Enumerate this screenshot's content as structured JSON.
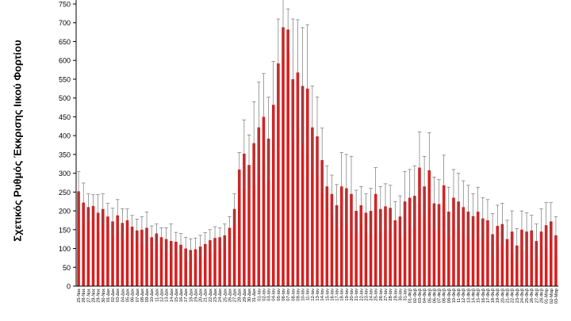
{
  "chart_data": {
    "type": "bar",
    "ylabel": "Σχετικός Ρυθμός Έκκρισης Ιικού Φορτίου",
    "ylim": [
      0,
      750
    ],
    "yticks": [
      0,
      50,
      100,
      150,
      200,
      250,
      300,
      350,
      400,
      450,
      500,
      550,
      600,
      650,
      700,
      750
    ],
    "grid": false,
    "colors": {
      "bar": "#d81e1e",
      "error": "#606060",
      "axis": "#000000"
    },
    "categories": [
      "25-Νοε",
      "26-Νοε",
      "27-Νοε",
      "28-Νοε",
      "29-Νοε",
      "30-Νοε",
      "01-Δεκ",
      "02-Δεκ",
      "03-Δεκ",
      "04-Δεκ",
      "05-Δεκ",
      "06-Δεκ",
      "07-Δεκ",
      "08-Δεκ",
      "09-Δεκ",
      "10-Δεκ",
      "11-Δεκ",
      "12-Δεκ",
      "13-Δεκ",
      "14-Δεκ",
      "15-Δεκ",
      "16-Δεκ",
      "17-Δεκ",
      "18-Δεκ",
      "19-Δεκ",
      "20-Δεκ",
      "21-Δεκ",
      "22-Δεκ",
      "23-Δεκ",
      "24-Δεκ",
      "25-Δεκ",
      "26-Δεκ",
      "27-Δεκ",
      "28-Δεκ",
      "29-Δεκ",
      "30-Δεκ",
      "31-Δεκ",
      "01-Ιαν",
      "02-Ιαν",
      "03-Ιαν",
      "04-Ιαν",
      "05-Ιαν",
      "06-Ιαν",
      "07-Ιαν",
      "08-Ιαν",
      "09-Ιαν",
      "10-Ιαν",
      "11-Ιαν",
      "12-Ιαν",
      "13-Ιαν",
      "14-Ιαν",
      "15-Ιαν",
      "16-Ιαν",
      "17-Ιαν",
      "18-Ιαν",
      "19-Ιαν",
      "20-Ιαν",
      "21-Ιαν",
      "22-Ιαν",
      "23-Ιαν",
      "24-Ιαν",
      "25-Ιαν",
      "26-Ιαν",
      "27-Ιαν",
      "28-Ιαν",
      "29-Ιαν",
      "30-Ιαν",
      "31-Ιαν",
      "01-Φεβ",
      "02-Φεβ",
      "03-Φεβ",
      "04-Φεβ",
      "05-Φεβ",
      "06-Φεβ",
      "07-Φεβ",
      "08-Φεβ",
      "09-Φεβ",
      "10-Φεβ",
      "11-Φεβ",
      "12-Φεβ",
      "13-Φεβ",
      "14-Φεβ",
      "15-Φεβ",
      "16-Φεβ",
      "17-Φεβ",
      "18-Φεβ",
      "19-Φεβ",
      "20-Φεβ",
      "21-Φεβ",
      "22-Φεβ",
      "23-Φεβ",
      "24-Φεβ",
      "25-Φεβ",
      "26-Φεβ",
      "27-Φεβ",
      "28-Φεβ",
      "01-Μαρ",
      "02-Μαρ",
      "03-Μαρ"
    ],
    "values": [
      252,
      222,
      210,
      213,
      195,
      205,
      185,
      172,
      188,
      168,
      175,
      158,
      148,
      150,
      155,
      130,
      140,
      130,
      125,
      120,
      118,
      110,
      100,
      96,
      98,
      105,
      112,
      122,
      128,
      130,
      135,
      155,
      205,
      310,
      352,
      322,
      380,
      422,
      450,
      392,
      482,
      592,
      688,
      682,
      550,
      568,
      532,
      525,
      422,
      398,
      335,
      265,
      245,
      215,
      265,
      260,
      245,
      200,
      215,
      195,
      200,
      245,
      205,
      212,
      208,
      175,
      185,
      225,
      235,
      240,
      315,
      265,
      308,
      220,
      218,
      268,
      198,
      235,
      225,
      210,
      198,
      186,
      198,
      180,
      175,
      138,
      160,
      165,
      125,
      145,
      108,
      150,
      145,
      148,
      120,
      145,
      162,
      172,
      135
    ],
    "errors": [
      52,
      52,
      35,
      30,
      48,
      40,
      35,
      35,
      42,
      38,
      30,
      30,
      30,
      35,
      42,
      30,
      25,
      25,
      30,
      45,
      25,
      30,
      30,
      30,
      30,
      30,
      30,
      28,
      30,
      25,
      30,
      30,
      40,
      45,
      90,
      80,
      110,
      120,
      115,
      110,
      115,
      118,
      85,
      55,
      160,
      140,
      155,
      170,
      110,
      105,
      85,
      55,
      50,
      55,
      90,
      90,
      100,
      55,
      50,
      50,
      60,
      70,
      60,
      60,
      60,
      50,
      55,
      80,
      75,
      80,
      95,
      80,
      100,
      70,
      65,
      80,
      65,
      75,
      75,
      70,
      70,
      60,
      65,
      55,
      55,
      55,
      55,
      55,
      50,
      55,
      45,
      50,
      50,
      40,
      45,
      60,
      60,
      50,
      50
    ]
  }
}
